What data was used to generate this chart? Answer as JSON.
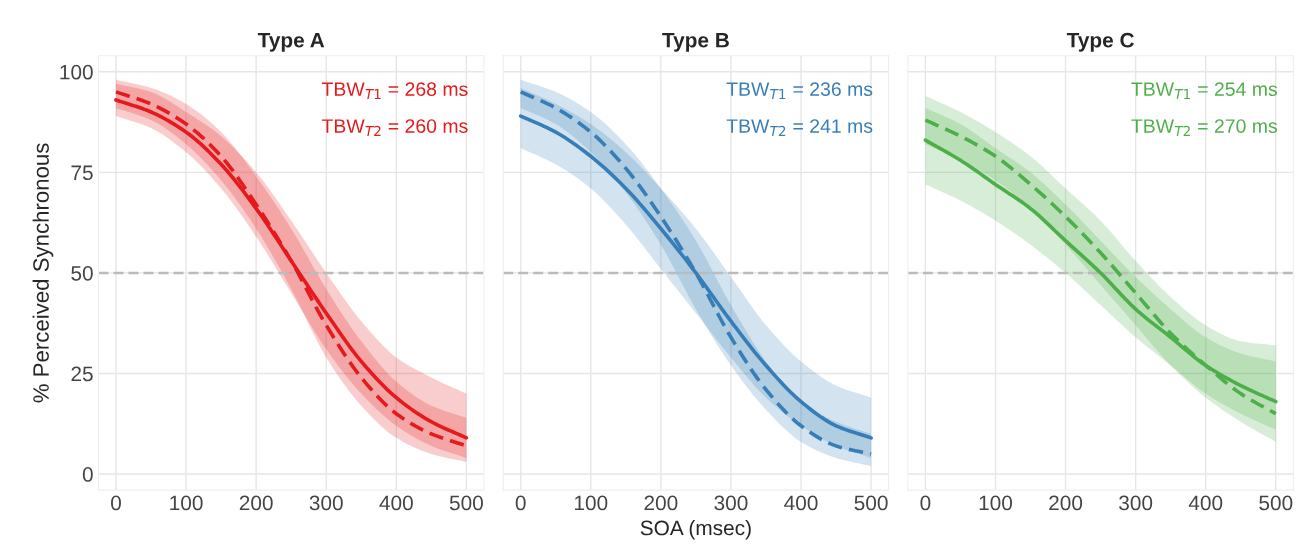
{
  "chart_data": [
    {
      "type": "line",
      "title": "Type A",
      "ylabel": "% Perceived Synchronous",
      "x": [
        0,
        50,
        100,
        150,
        200,
        250,
        300,
        350,
        400,
        450,
        500
      ],
      "xlim": [
        -25,
        525
      ],
      "xticks": [
        0,
        100,
        200,
        300,
        400,
        500
      ],
      "ylim": [
        -4,
        104
      ],
      "yticks": [
        0,
        25,
        50,
        75,
        100
      ],
      "grid": true,
      "legend": false,
      "tick_labels": "xy",
      "series": [
        {
          "color": "#e41a1c",
          "line_style": "solid",
          "values": [
            93,
            90,
            85,
            77,
            66,
            53,
            40,
            28,
            19,
            13,
            9
          ],
          "lower": [
            89,
            86,
            80,
            71,
            59,
            45,
            31,
            20,
            12,
            7,
            4
          ],
          "upper": [
            97,
            95,
            90,
            84,
            75,
            63,
            50,
            38,
            29,
            24,
            20
          ]
        },
        {
          "color": "#e41a1c",
          "line_style": "dashed",
          "values": [
            95,
            92,
            87,
            79,
            67,
            53,
            37,
            24,
            15,
            10,
            7
          ],
          "lower": [
            91,
            88,
            82,
            73,
            61,
            46,
            29,
            17,
            9,
            5,
            3
          ],
          "upper": [
            98,
            96,
            92,
            85,
            74,
            61,
            46,
            33,
            23,
            17,
            14
          ]
        }
      ],
      "ref_lines": [
        {
          "axis": "y",
          "value": 50,
          "color": "#bbbbbb",
          "line_style": "dashed"
        }
      ],
      "annotations": [
        "TBW$_{T1}$ = 268 ms",
        "TBW$_{T2}$ = 260 ms"
      ]
    },
    {
      "type": "line",
      "title": "Type B",
      "xlabel": "SOA (msec)",
      "x": [
        0,
        50,
        100,
        150,
        200,
        250,
        300,
        350,
        400,
        450,
        500
      ],
      "xlim": [
        -25,
        525
      ],
      "xticks": [
        0,
        100,
        200,
        300,
        400,
        500
      ],
      "ylim": [
        -4,
        104
      ],
      "yticks": [
        0,
        25,
        50,
        75,
        100
      ],
      "grid": true,
      "legend": false,
      "tick_labels": "x",
      "series": [
        {
          "color": "#377eb8",
          "line_style": "solid",
          "values": [
            89,
            85,
            79,
            71,
            61,
            50,
            38,
            27,
            18,
            12,
            9
          ],
          "lower": [
            81,
            77,
            71,
            62,
            51,
            40,
            29,
            19,
            12,
            7,
            4
          ],
          "upper": [
            96,
            92,
            87,
            80,
            71,
            61,
            49,
            37,
            28,
            22,
            19
          ]
        },
        {
          "color": "#377eb8",
          "line_style": "dashed",
          "values": [
            95,
            91,
            85,
            76,
            64,
            50,
            34,
            21,
            12,
            7,
            5
          ],
          "lower": [
            91,
            87,
            80,
            70,
            57,
            41,
            27,
            16,
            8,
            4,
            2
          ],
          "upper": [
            98,
            95,
            90,
            82,
            71,
            58,
            42,
            28,
            18,
            13,
            10
          ]
        }
      ],
      "ref_lines": [
        {
          "axis": "y",
          "value": 50,
          "color": "#bbbbbb",
          "line_style": "dashed"
        }
      ],
      "annotations": [
        "TBW$_{T1}$ = 236 ms",
        "TBW$_{T2}$ = 241 ms"
      ]
    },
    {
      "type": "line",
      "title": "Type C",
      "x": [
        0,
        50,
        100,
        150,
        200,
        250,
        300,
        350,
        400,
        450,
        500
      ],
      "xlim": [
        -25,
        525
      ],
      "xticks": [
        0,
        100,
        200,
        300,
        400,
        500
      ],
      "ylim": [
        -4,
        104
      ],
      "yticks": [
        0,
        25,
        50,
        75,
        100
      ],
      "grid": true,
      "legend": false,
      "tick_labels": "x",
      "series": [
        {
          "color": "#4daf4a",
          "line_style": "solid",
          "values": [
            83,
            78,
            72,
            66,
            58,
            50,
            41,
            34,
            27,
            22,
            18
          ],
          "lower": [
            72,
            68,
            63,
            57,
            50,
            42,
            34,
            27,
            20,
            15,
            11
          ],
          "upper": [
            91,
            87,
            81,
            75,
            67,
            58,
            49,
            41,
            34,
            30,
            28
          ]
        },
        {
          "color": "#4daf4a",
          "line_style": "dashed",
          "values": [
            88,
            84,
            79,
            72,
            64,
            55,
            45,
            35,
            27,
            20,
            15
          ],
          "lower": [
            82,
            78,
            73,
            66,
            57,
            47,
            37,
            27,
            19,
            13,
            8
          ],
          "upper": [
            94,
            90,
            85,
            79,
            71,
            63,
            53,
            44,
            37,
            33,
            32
          ]
        }
      ],
      "ref_lines": [
        {
          "axis": "y",
          "value": 50,
          "color": "#bbbbbb",
          "line_style": "dashed"
        }
      ],
      "annotations": [
        "TBW$_{T1}$ = 254 ms",
        "TBW$_{T2}$ = 270 ms"
      ]
    }
  ]
}
